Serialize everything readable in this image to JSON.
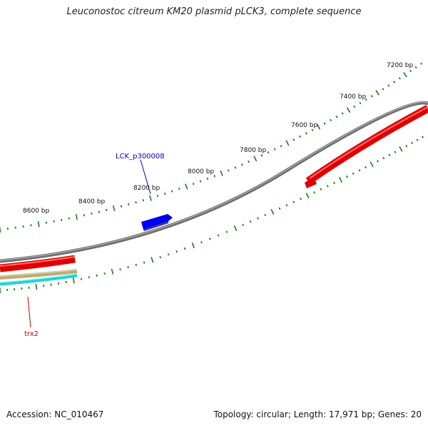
{
  "title": "Leuconostoc citreum KM20 plasmid pLCK3, complete sequence",
  "accession": {
    "label": "Accession:",
    "value": "NC_010467"
  },
  "stats": {
    "topology_label": "Topology:",
    "topology": "circular",
    "length_label": "Length:",
    "length": "17,971 bp",
    "genes_label": "Genes:",
    "genes": "20"
  },
  "colors": {
    "backbone": "#8a8a8a",
    "ticks": "#1a7a1a",
    "forward_gene": "#0000ee",
    "reverse_gene": "#ee0000",
    "rna_tan": "#b8ad7a",
    "rna_cyan": "#22d4d4",
    "label_blue": "#0000cc",
    "label_red": "#cc0000"
  },
  "scale_labels": [
    {
      "bp": 7200,
      "text": "7200 bp"
    },
    {
      "bp": 7400,
      "text": "7400 bp"
    },
    {
      "bp": 7600,
      "text": "7600 bp"
    },
    {
      "bp": 7800,
      "text": "7800 bp"
    },
    {
      "bp": 8000,
      "text": "8000 bp"
    },
    {
      "bp": 8200,
      "text": "8200 bp"
    },
    {
      "bp": 8400,
      "text": "8400 bp"
    },
    {
      "bp": 8600,
      "text": "8600 bp"
    }
  ],
  "gene_labels": [
    {
      "text": "LCK_p300008"
    },
    {
      "text": "trx2"
    }
  ]
}
